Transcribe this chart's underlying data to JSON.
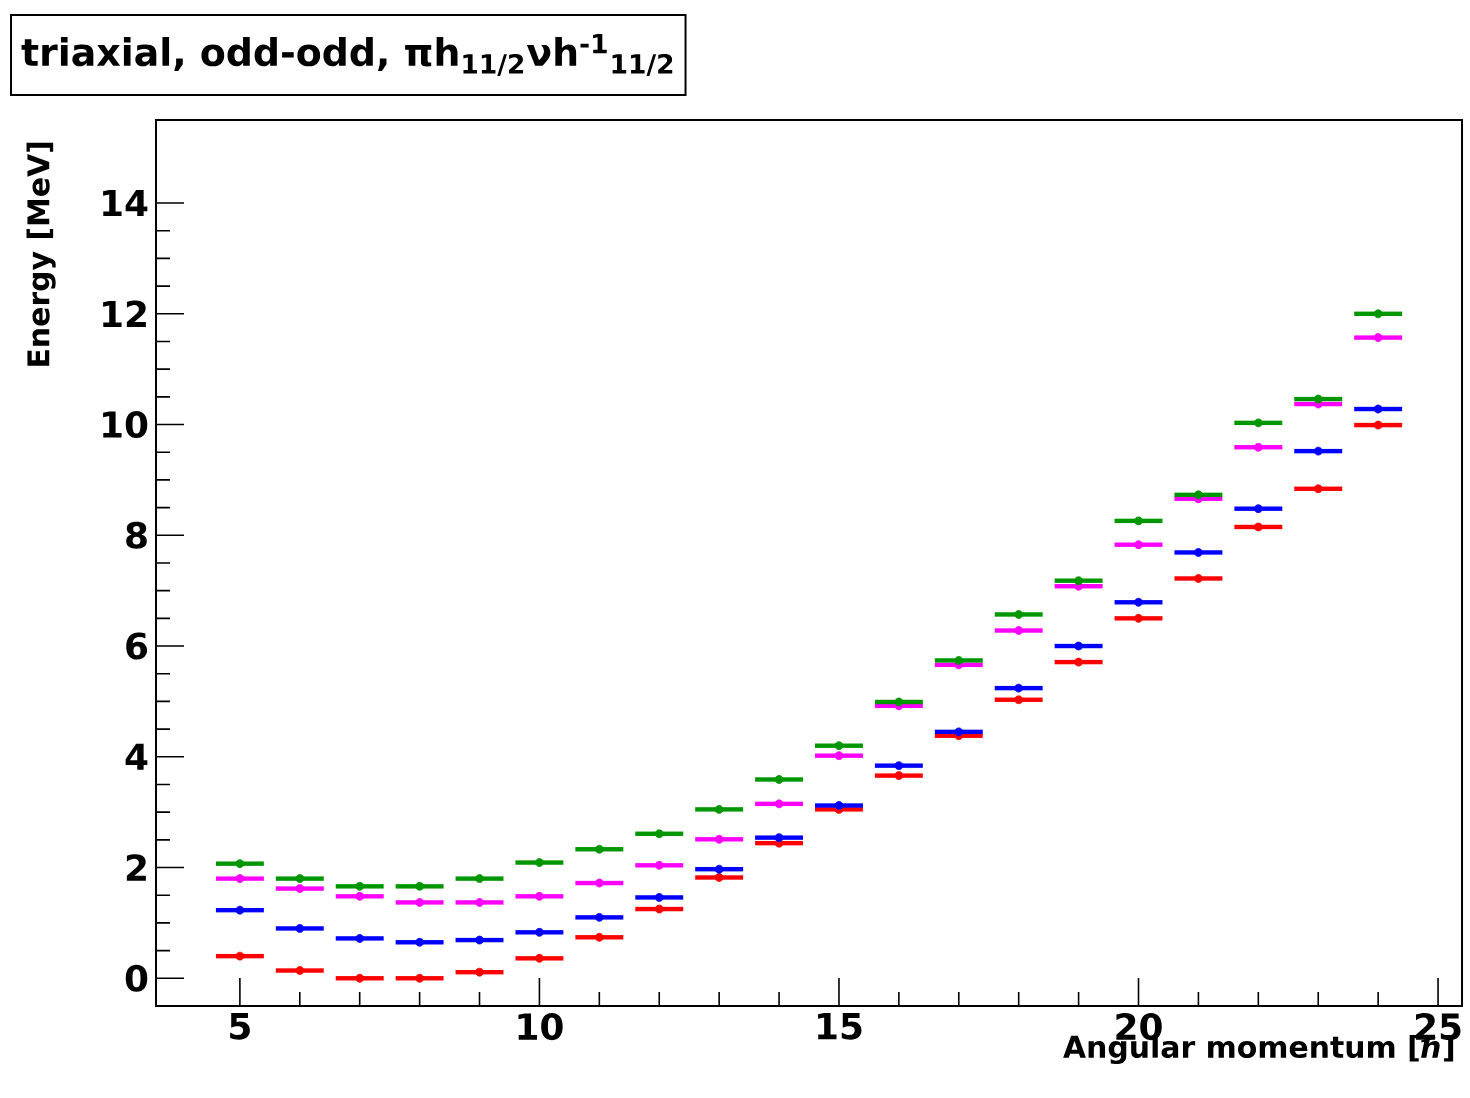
{
  "chart_data": {
    "type": "scatter",
    "title": "triaxial, odd-odd, πh$_{11/2}$νh$^{-1}$$_{11/2}$",
    "xlabel": "Angular momentum [ℏ]",
    "ylabel": "Energy [MeV]",
    "x": [
      5,
      6,
      7,
      8,
      9,
      10,
      11,
      12,
      13,
      14,
      15,
      16,
      17,
      18,
      19,
      20,
      21,
      22,
      23,
      24
    ],
    "series": [
      {
        "color": "#ff0000",
        "values": [
          0.4,
          0.14,
          0.0,
          0.0,
          0.11,
          0.36,
          0.74,
          1.25,
          1.82,
          2.44,
          3.05,
          3.66,
          4.38,
          5.03,
          5.71,
          6.5,
          7.22,
          8.15,
          8.84,
          9.99
        ],
        "xerrors": [
          0.4,
          0.4,
          0.4,
          0.4,
          0.4,
          0.4,
          0.4,
          0.4,
          0.4,
          0.4,
          0.4,
          0.4,
          0.4,
          0.4,
          0.4,
          0.4,
          0.4,
          0.4,
          0.4,
          0.4
        ]
      },
      {
        "color": "#0000ff",
        "values": [
          1.23,
          0.9,
          0.72,
          0.65,
          0.69,
          0.83,
          1.1,
          1.46,
          1.97,
          2.54,
          3.12,
          3.84,
          4.45,
          5.24,
          6.0,
          6.79,
          7.69,
          8.48,
          9.52,
          10.28
        ],
        "xerrors": [
          0.4,
          0.4,
          0.4,
          0.4,
          0.4,
          0.4,
          0.4,
          0.4,
          0.4,
          0.4,
          0.4,
          0.4,
          0.4,
          0.4,
          0.4,
          0.4,
          0.4,
          0.4,
          0.4,
          0.4
        ]
      },
      {
        "color": "#ff00ff",
        "values": [
          1.8,
          1.62,
          1.48,
          1.37,
          1.37,
          1.48,
          1.72,
          2.04,
          2.51,
          3.15,
          4.02,
          4.92,
          5.66,
          6.28,
          7.08,
          7.83,
          8.66,
          9.59,
          10.37,
          11.57
        ],
        "xerrors": [
          0.4,
          0.4,
          0.4,
          0.4,
          0.4,
          0.4,
          0.4,
          0.4,
          0.4,
          0.4,
          0.4,
          0.4,
          0.4,
          0.4,
          0.4,
          0.4,
          0.4,
          0.4,
          0.4,
          0.4
        ]
      },
      {
        "color": "#009600",
        "values": [
          2.07,
          1.8,
          1.66,
          1.66,
          1.8,
          2.09,
          2.33,
          2.61,
          3.05,
          3.59,
          4.2,
          4.99,
          5.74,
          6.57,
          7.18,
          8.26,
          8.73,
          10.03,
          10.46,
          12.0
        ],
        "xerrors": [
          0.4,
          0.4,
          0.4,
          0.4,
          0.4,
          0.4,
          0.4,
          0.4,
          0.4,
          0.4,
          0.4,
          0.4,
          0.4,
          0.4,
          0.4,
          0.4,
          0.4,
          0.4,
          0.4,
          0.4
        ]
      }
    ],
    "xlim": [
      3.6,
      25.4
    ],
    "ylim": [
      -0.5,
      15.5
    ],
    "xticks": [
      5,
      10,
      15,
      20,
      25
    ],
    "yticks": [
      0,
      2,
      4,
      6,
      8,
      10,
      12,
      14
    ]
  }
}
